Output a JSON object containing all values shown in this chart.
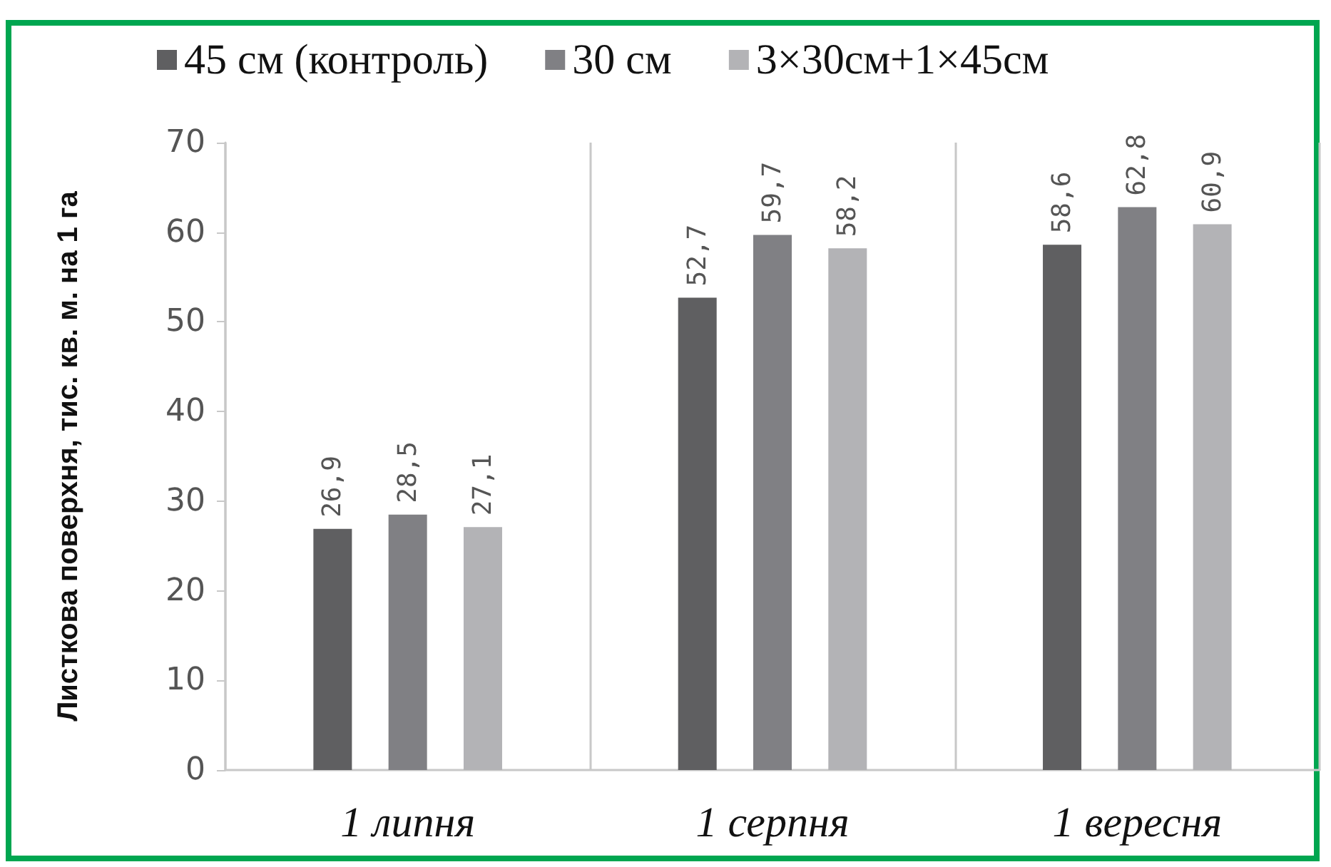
{
  "chart_data": {
    "type": "bar",
    "ylabel": "Листкова поверхня, тис. кв. м. на 1 га",
    "categories": [
      "1 липня",
      "1 серпня",
      "1 вересня"
    ],
    "series": [
      {
        "name": "45 см (контроль)",
        "color": "#5f5f61",
        "values": [
          26.9,
          52.7,
          58.6
        ],
        "value_labels": [
          "26,9",
          "52,7",
          "58,6"
        ]
      },
      {
        "name": "30 см",
        "color": "#808084",
        "values": [
          28.5,
          59.7,
          62.8
        ],
        "value_labels": [
          "28,5",
          "59,7",
          "62,8"
        ]
      },
      {
        "name": "3×30см+1×45см",
        "color": "#b3b3b6",
        "values": [
          27.1,
          58.2,
          60.9
        ],
        "value_labels": [
          "27,1",
          "58,2",
          "60,9"
        ]
      }
    ],
    "ylim": [
      0,
      70
    ],
    "yticks": [
      0,
      10,
      20,
      30,
      40,
      50,
      60,
      70
    ],
    "grid": "x",
    "legend": "top"
  }
}
